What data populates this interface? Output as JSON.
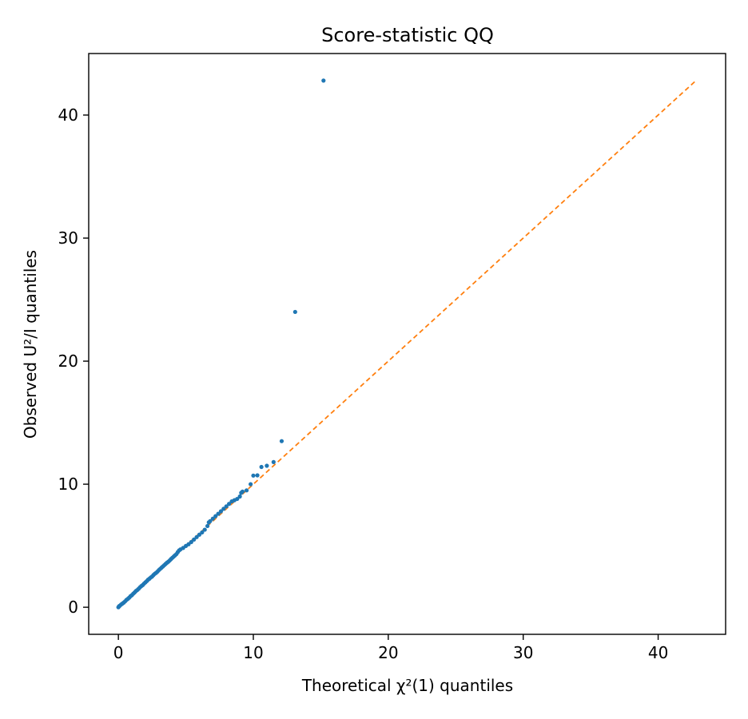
{
  "chart_data": {
    "type": "scatter",
    "title": "Score-statistic QQ",
    "xlabel": "Theoretical χ²(1) quantiles",
    "ylabel": "Observed U²/I quantiles",
    "xlim": [
      -2.2,
      45
    ],
    "ylim": [
      -2.2,
      45
    ],
    "xticks": [
      0,
      10,
      20,
      30,
      40
    ],
    "yticks": [
      0,
      10,
      20,
      30,
      40
    ],
    "grid": false,
    "colors": {
      "points": "#1f77b4",
      "reference": "#ff7f0e"
    },
    "reference_line": {
      "style": "dashed",
      "from": [
        0,
        0
      ],
      "to": [
        42.8,
        42.8
      ]
    },
    "series": [
      {
        "points": [
          [
            0.0,
            0.0
          ],
          [
            0.05,
            0.08
          ],
          [
            0.1,
            0.12
          ],
          [
            0.2,
            0.22
          ],
          [
            0.3,
            0.3
          ],
          [
            0.4,
            0.38
          ],
          [
            0.5,
            0.48
          ],
          [
            0.6,
            0.6
          ],
          [
            0.7,
            0.68
          ],
          [
            0.8,
            0.78
          ],
          [
            0.9,
            0.9
          ],
          [
            1.0,
            0.98
          ],
          [
            1.1,
            1.1
          ],
          [
            1.2,
            1.2
          ],
          [
            1.3,
            1.32
          ],
          [
            1.4,
            1.4
          ],
          [
            1.5,
            1.5
          ],
          [
            1.6,
            1.62
          ],
          [
            1.7,
            1.72
          ],
          [
            1.8,
            1.8
          ],
          [
            1.9,
            1.92
          ],
          [
            2.0,
            2.02
          ],
          [
            2.1,
            2.12
          ],
          [
            2.2,
            2.24
          ],
          [
            2.3,
            2.32
          ],
          [
            2.4,
            2.42
          ],
          [
            2.5,
            2.5
          ],
          [
            2.6,
            2.62
          ],
          [
            2.7,
            2.72
          ],
          [
            2.8,
            2.8
          ],
          [
            2.9,
            2.9
          ],
          [
            3.0,
            3.02
          ],
          [
            3.1,
            3.12
          ],
          [
            3.2,
            3.22
          ],
          [
            3.3,
            3.32
          ],
          [
            3.4,
            3.42
          ],
          [
            3.5,
            3.52
          ],
          [
            3.6,
            3.62
          ],
          [
            3.7,
            3.7
          ],
          [
            3.8,
            3.8
          ],
          [
            3.9,
            3.92
          ],
          [
            4.0,
            4.02
          ],
          [
            4.1,
            4.12
          ],
          [
            4.2,
            4.22
          ],
          [
            4.3,
            4.32
          ],
          [
            4.4,
            4.48
          ],
          [
            4.5,
            4.62
          ],
          [
            4.6,
            4.7
          ],
          [
            4.8,
            4.82
          ],
          [
            5.0,
            4.98
          ],
          [
            5.2,
            5.12
          ],
          [
            5.4,
            5.3
          ],
          [
            5.6,
            5.5
          ],
          [
            5.8,
            5.7
          ],
          [
            6.0,
            5.9
          ],
          [
            6.2,
            6.08
          ],
          [
            6.4,
            6.3
          ],
          [
            6.6,
            6.6
          ],
          [
            6.7,
            6.9
          ],
          [
            6.8,
            7.0
          ],
          [
            7.0,
            7.2
          ],
          [
            7.2,
            7.4
          ],
          [
            7.4,
            7.6
          ],
          [
            7.6,
            7.8
          ],
          [
            7.8,
            8.0
          ],
          [
            8.0,
            8.2
          ],
          [
            8.2,
            8.4
          ],
          [
            8.4,
            8.6
          ],
          [
            8.6,
            8.7
          ],
          [
            8.8,
            8.8
          ],
          [
            9.0,
            9.0
          ],
          [
            9.1,
            9.3
          ],
          [
            9.2,
            9.4
          ],
          [
            9.5,
            9.5
          ],
          [
            9.8,
            10.0
          ],
          [
            10.0,
            10.7
          ],
          [
            10.3,
            10.72
          ],
          [
            10.6,
            11.4
          ],
          [
            11.0,
            11.5
          ],
          [
            11.5,
            11.8
          ],
          [
            12.1,
            13.5
          ],
          [
            13.1,
            24.0
          ],
          [
            15.2,
            42.8
          ]
        ]
      }
    ]
  }
}
